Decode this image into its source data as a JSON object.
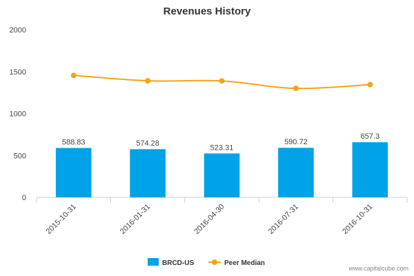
{
  "chart_data": {
    "type": "bar",
    "title": "Revenues History",
    "categories": [
      "2015-10-31",
      "2016-01-31",
      "2016-04-30",
      "2016-07-31",
      "2016-10-31"
    ],
    "series": [
      {
        "name": "BRCD-US",
        "type": "bar",
        "values": [
          588.83,
          574.28,
          523.31,
          590.72,
          657.3
        ],
        "labels": [
          "588.83",
          "574.28",
          "523.31",
          "590.72",
          "657.3"
        ],
        "color": "#00a2e8"
      },
      {
        "name": "Peer Median",
        "type": "line",
        "values": [
          1455,
          1390,
          1388,
          1300,
          1345
        ],
        "color": "#f5a316"
      }
    ],
    "yticks": [
      "0",
      "500",
      "1000",
      "1500",
      "2000"
    ],
    "ylim": [
      0,
      2000
    ],
    "grid": false,
    "legend": "bottom-center"
  },
  "credit": "www.capitalcube.com"
}
